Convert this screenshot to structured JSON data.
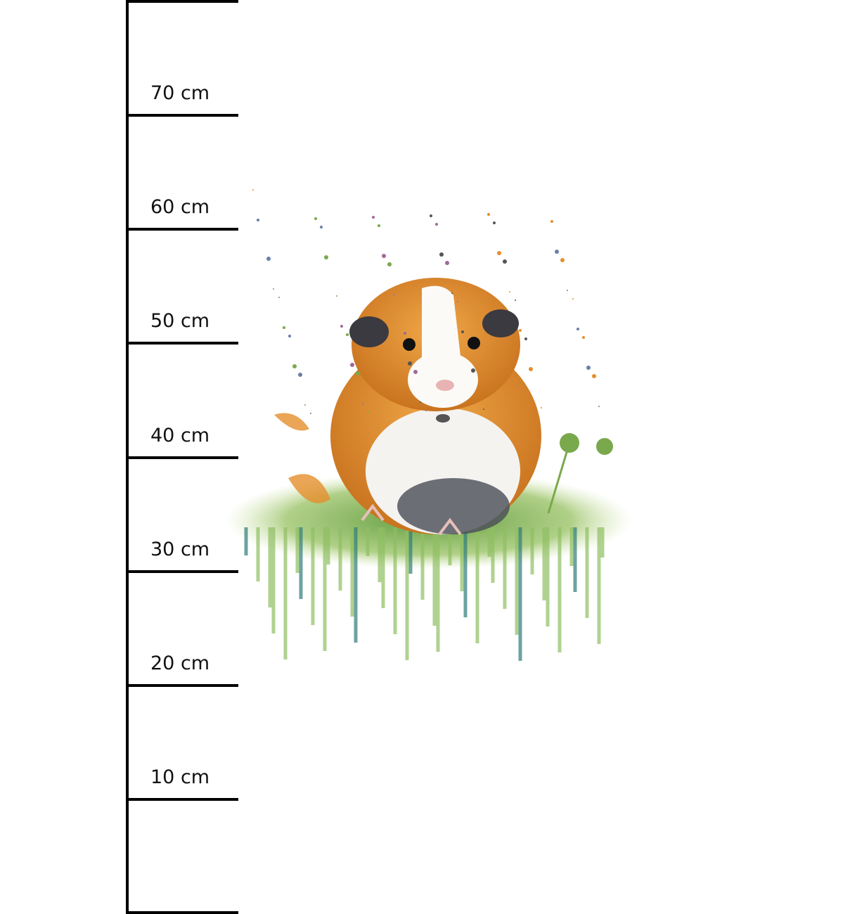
{
  "ruler": {
    "labels": [
      "70 cm",
      "60 cm",
      "50 cm",
      "40 cm",
      "30 cm",
      "20 cm",
      "10 cm"
    ]
  },
  "illustration": {
    "subject": "watercolor guinea pig in grass",
    "colors": {
      "fur_orange": "#d9862f",
      "fur_white": "#fbfaf7",
      "fur_dark": "#3b3a40",
      "grass": "#7fae4a",
      "teal": "#2f7d7a"
    }
  }
}
